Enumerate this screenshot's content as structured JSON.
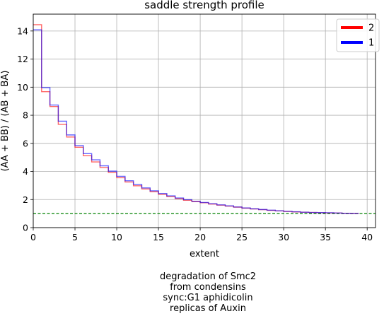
{
  "chart_data": {
    "type": "line",
    "step": true,
    "title": "saddle strength profile",
    "xlabel": "extent",
    "ylabel": "(AA + BB) / (AB + BA)",
    "xlim": [
      0,
      41
    ],
    "ylim": [
      0,
      15.2
    ],
    "xticks": [
      0,
      5,
      10,
      15,
      20,
      25,
      30,
      35,
      40
    ],
    "yticks": [
      0,
      2,
      4,
      6,
      8,
      10,
      12,
      14
    ],
    "grid": true,
    "legend_position": "top-right",
    "reference_line": {
      "y": 1.0,
      "color": "#008000",
      "style": "dashed"
    },
    "series": [
      {
        "name": "2",
        "color": "#ff0000",
        "legend_color": "#ff0000",
        "values": [
          14.45,
          9.68,
          8.62,
          7.35,
          6.45,
          5.72,
          5.12,
          4.68,
          4.28,
          3.93,
          3.55,
          3.25,
          2.98,
          2.75,
          2.56,
          2.37,
          2.21,
          2.07,
          1.95,
          1.85,
          1.77,
          1.68,
          1.6,
          1.53,
          1.46,
          1.39,
          1.33,
          1.28,
          1.23,
          1.19,
          1.15,
          1.12,
          1.1,
          1.08,
          1.06,
          1.05,
          1.04,
          1.02,
          1.01
        ]
      },
      {
        "name": "1",
        "color": "#0000ff",
        "legend_color": "#0000ff",
        "values": [
          14.08,
          9.97,
          8.73,
          7.58,
          6.6,
          5.84,
          5.27,
          4.83,
          4.4,
          4.02,
          3.65,
          3.34,
          3.08,
          2.83,
          2.62,
          2.43,
          2.26,
          2.11,
          1.99,
          1.88,
          1.79,
          1.7,
          1.62,
          1.55,
          1.47,
          1.4,
          1.34,
          1.29,
          1.24,
          1.2,
          1.16,
          1.13,
          1.1,
          1.08,
          1.07,
          1.06,
          1.04,
          1.02,
          1.01
        ]
      }
    ],
    "caption_lines": [
      "degradation of Smc2",
      "from condensins",
      "sync:G1 aphidicolin",
      "replicas of Auxin"
    ]
  }
}
